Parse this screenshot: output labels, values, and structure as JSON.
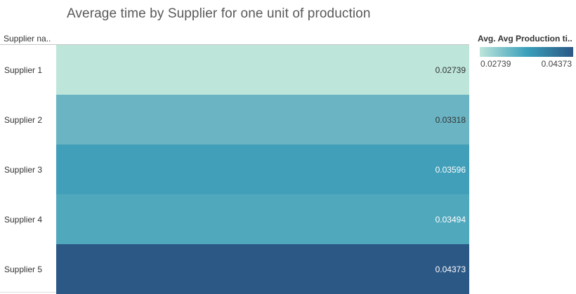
{
  "chart_data": {
    "type": "heatmap",
    "title": "Average time by Supplier for one unit of production",
    "row_header": "Supplier na..",
    "categories": [
      "Supplier 1",
      "Supplier 2",
      "Supplier 3",
      "Supplier 4",
      "Supplier 5"
    ],
    "values": [
      0.02739,
      0.03318,
      0.03596,
      0.03494,
      0.04373
    ],
    "value_labels": [
      "0.02739",
      "0.03318",
      "0.03596",
      "0.03494",
      "0.04373"
    ],
    "legend": {
      "title": "Avg. Avg Production ti..",
      "min_label": "0.02739",
      "max_label": "0.04373",
      "placement": "top-right",
      "color_low": "#bde5da",
      "color_mid": "#3ba0bb",
      "color_high": "#2c5886"
    },
    "cell_colors": [
      "#bde5da",
      "#6ab4c3",
      "#429fb9",
      "#50a8bd",
      "#2c5886"
    ],
    "grid": false
  }
}
